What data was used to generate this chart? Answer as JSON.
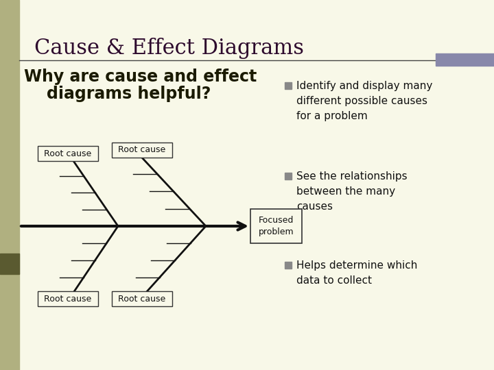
{
  "bg_color": "#f8f8e8",
  "title": "Cause & Effect Diagrams",
  "title_color": "#2d0a2d",
  "title_fontsize": 22,
  "subtitle_line1": "Why are cause and effect",
  "subtitle_line2": "    diagrams helpful?",
  "subtitle_fontsize": 17,
  "subtitle_color": "#1a1a00",
  "header_line_color": "#444444",
  "accent_bar_color": "#8888aa",
  "bullet_color": "#888888",
  "bullet_points": [
    "Identify and display many\ndifferent possible causes\nfor a problem",
    "See the relationships\nbetween the many\ncauses",
    "Helps determine which\ndata to collect"
  ],
  "bullet_fontsize": 11,
  "bullet_text_color": "#111111",
  "fishbone_spine_color": "#111111",
  "fishbone_branch_color": "#111111",
  "fishbone_tick_color": "#111111",
  "root_cause_label": "Root cause",
  "focused_label": "Focused\nproblem",
  "label_fontsize": 9,
  "left_bar_color": "#b0b080",
  "left_bar_dark": "#5a5a30"
}
